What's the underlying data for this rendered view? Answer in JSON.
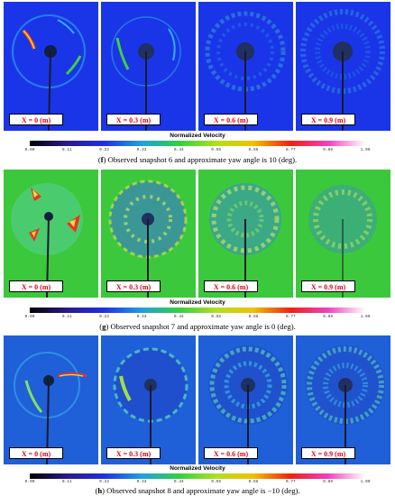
{
  "figures": [
    {
      "id": "f",
      "panels": [
        "X = 0 (m)",
        "X = 0.3 (m)",
        "X = 0.6 (m)",
        "X = 0.9 (m)"
      ],
      "colorbar_title": "Normalized Velocity",
      "caption_letter": "f",
      "caption_text": " Observed snapshot 6 and approximate yaw angle is 10 (deg).",
      "background": "#1a35e8"
    },
    {
      "id": "g",
      "panels": [
        "X = 0 (m)",
        "X = 0.3 (m)",
        "X = 0.6 (m)",
        "X = 0.9 (m)"
      ],
      "colorbar_title": "Normalized Velocity",
      "caption_letter": "g",
      "caption_text": " Observed snapshot 7 and approximate yaw angle is 0 (deg).",
      "background": "#3cc83c"
    },
    {
      "id": "h",
      "panels": [
        "X = 0 (m)",
        "X = 0.3 (m)",
        "X = 0.6 (m)",
        "X = 0.9 (m)"
      ],
      "colorbar_title": "Normalized Velocity",
      "caption_letter": "h",
      "caption_text": " Observed snapshot 8 and approximate yaw angle is −10 (deg).",
      "background": "#1f5fd8"
    }
  ],
  "colorbar_ticks": [
    "0.00",
    "0.11",
    "0.22",
    "0.33",
    "0.44",
    "0.55",
    "0.66",
    "0.77",
    "0.89",
    "1.00"
  ],
  "colorbar_colors": [
    "#000000",
    "#2a1a8a",
    "#2030e0",
    "#1fa0e0",
    "#30d040",
    "#b0e020",
    "#f0c000",
    "#f02010",
    "#f040c0",
    "#ffffff"
  ]
}
